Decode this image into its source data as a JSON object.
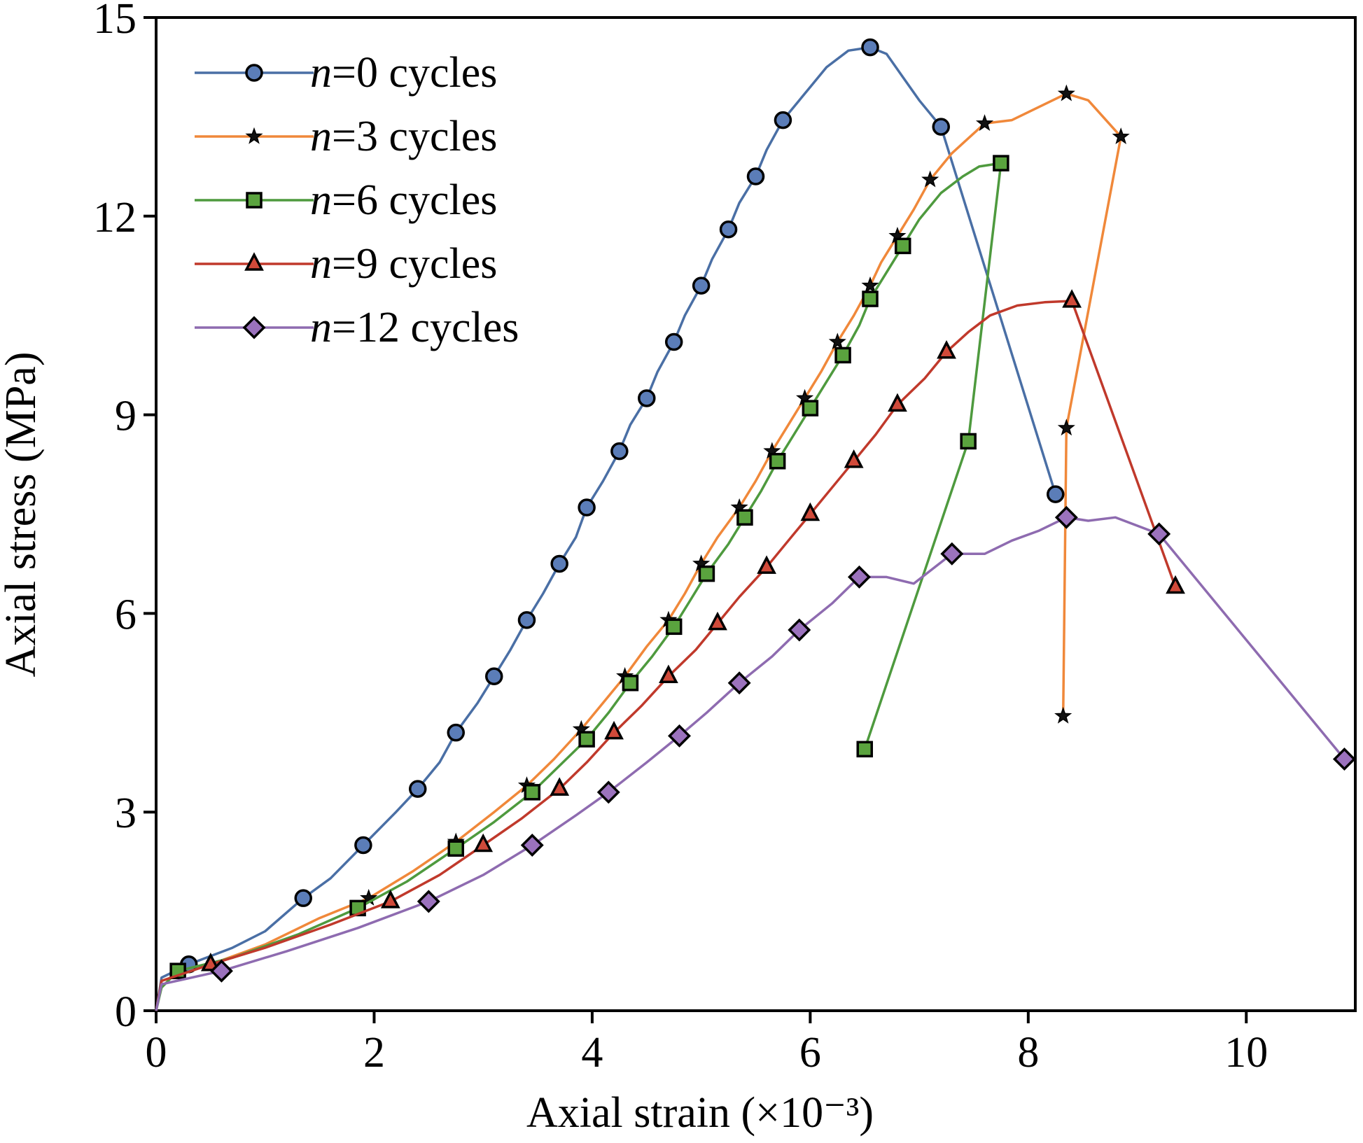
{
  "chart_data": {
    "type": "line",
    "xlabel": "Axial strain (×10⁻³)",
    "ylabel": "Axial stress (MPa)",
    "xlim": [
      0,
      11
    ],
    "ylim": [
      0,
      15
    ],
    "xticks": [
      0,
      2,
      4,
      6,
      8,
      10
    ],
    "yticks": [
      0,
      3,
      6,
      9,
      12,
      15
    ],
    "grid": false,
    "legend_position": "top-left",
    "series": [
      {
        "name": "n=0 cycles",
        "legend_prefix": "n",
        "legend_suffix": "=0 cycles",
        "color": "#4a6fa5",
        "fill": "#5b7db8",
        "marker": "circle",
        "line": [
          [
            0,
            0
          ],
          [
            0.05,
            0.5
          ],
          [
            0.3,
            0.7
          ],
          [
            0.7,
            0.95
          ],
          [
            1.0,
            1.2
          ],
          [
            1.35,
            1.7
          ],
          [
            1.6,
            2.0
          ],
          [
            1.9,
            2.5
          ],
          [
            2.2,
            3.0
          ],
          [
            2.4,
            3.35
          ],
          [
            2.6,
            3.75
          ],
          [
            2.75,
            4.2
          ],
          [
            2.95,
            4.65
          ],
          [
            3.1,
            5.05
          ],
          [
            3.25,
            5.45
          ],
          [
            3.4,
            5.9
          ],
          [
            3.55,
            6.3
          ],
          [
            3.7,
            6.75
          ],
          [
            3.85,
            7.15
          ],
          [
            3.95,
            7.6
          ],
          [
            4.1,
            8.0
          ],
          [
            4.25,
            8.45
          ],
          [
            4.35,
            8.85
          ],
          [
            4.5,
            9.25
          ],
          [
            4.6,
            9.65
          ],
          [
            4.75,
            10.1
          ],
          [
            4.85,
            10.5
          ],
          [
            5.0,
            10.95
          ],
          [
            5.1,
            11.35
          ],
          [
            5.25,
            11.8
          ],
          [
            5.35,
            12.2
          ],
          [
            5.5,
            12.6
          ],
          [
            5.6,
            13.0
          ],
          [
            5.75,
            13.45
          ],
          [
            5.95,
            13.85
          ],
          [
            6.15,
            14.25
          ],
          [
            6.35,
            14.5
          ],
          [
            6.55,
            14.55
          ],
          [
            6.7,
            14.45
          ],
          [
            6.85,
            14.1
          ],
          [
            7.0,
            13.75
          ],
          [
            7.2,
            13.35
          ],
          [
            8.25,
            7.8
          ]
        ],
        "markers": [
          [
            0.3,
            0.7
          ],
          [
            1.35,
            1.7
          ],
          [
            1.9,
            2.5
          ],
          [
            2.4,
            3.35
          ],
          [
            2.75,
            4.2
          ],
          [
            3.1,
            5.05
          ],
          [
            3.4,
            5.9
          ],
          [
            3.7,
            6.75
          ],
          [
            3.95,
            7.6
          ],
          [
            4.25,
            8.45
          ],
          [
            4.5,
            9.25
          ],
          [
            4.75,
            10.1
          ],
          [
            5.0,
            10.95
          ],
          [
            5.25,
            11.8
          ],
          [
            5.5,
            12.6
          ],
          [
            5.75,
            13.45
          ],
          [
            6.55,
            14.55
          ],
          [
            7.2,
            13.35
          ],
          [
            8.25,
            7.8
          ]
        ]
      },
      {
        "name": "n=3 cycles",
        "legend_prefix": "n",
        "legend_suffix": "=3 cycles",
        "color": "#f0883a",
        "fill": "#000000",
        "marker": "star",
        "line": [
          [
            0,
            0
          ],
          [
            0.05,
            0.45
          ],
          [
            0.5,
            0.7
          ],
          [
            1.0,
            1.0
          ],
          [
            1.5,
            1.4
          ],
          [
            1.95,
            1.7
          ],
          [
            2.35,
            2.1
          ],
          [
            2.75,
            2.55
          ],
          [
            3.1,
            3.0
          ],
          [
            3.4,
            3.4
          ],
          [
            3.65,
            3.8
          ],
          [
            3.9,
            4.25
          ],
          [
            4.1,
            4.65
          ],
          [
            4.3,
            5.05
          ],
          [
            4.5,
            5.5
          ],
          [
            4.7,
            5.9
          ],
          [
            4.85,
            6.3
          ],
          [
            5.0,
            6.75
          ],
          [
            5.15,
            7.15
          ],
          [
            5.35,
            7.6
          ],
          [
            5.5,
            8.0
          ],
          [
            5.65,
            8.45
          ],
          [
            5.8,
            8.85
          ],
          [
            5.95,
            9.25
          ],
          [
            6.1,
            9.65
          ],
          [
            6.25,
            10.1
          ],
          [
            6.4,
            10.5
          ],
          [
            6.55,
            10.95
          ],
          [
            6.65,
            11.3
          ],
          [
            6.8,
            11.7
          ],
          [
            6.95,
            12.1
          ],
          [
            7.1,
            12.55
          ],
          [
            7.3,
            12.95
          ],
          [
            7.6,
            13.4
          ],
          [
            7.85,
            13.45
          ],
          [
            8.1,
            13.65
          ],
          [
            8.35,
            13.85
          ],
          [
            8.55,
            13.75
          ],
          [
            8.85,
            13.2
          ],
          [
            8.35,
            8.8
          ],
          [
            8.32,
            4.45
          ]
        ],
        "markers": [
          [
            1.95,
            1.7
          ],
          [
            2.75,
            2.55
          ],
          [
            3.4,
            3.4
          ],
          [
            3.9,
            4.25
          ],
          [
            4.3,
            5.05
          ],
          [
            4.7,
            5.9
          ],
          [
            5.0,
            6.75
          ],
          [
            5.35,
            7.6
          ],
          [
            5.65,
            8.45
          ],
          [
            5.95,
            9.25
          ],
          [
            6.25,
            10.1
          ],
          [
            6.55,
            10.95
          ],
          [
            6.8,
            11.7
          ],
          [
            7.1,
            12.55
          ],
          [
            7.6,
            13.4
          ],
          [
            8.35,
            13.85
          ],
          [
            8.85,
            13.2
          ],
          [
            8.35,
            8.8
          ],
          [
            8.32,
            4.45
          ]
        ]
      },
      {
        "name": "n=6 cycles",
        "legend_prefix": "n",
        "legend_suffix": "=6 cycles",
        "color": "#4e9a3e",
        "fill": "#5aa33e",
        "marker": "square",
        "line": [
          [
            0,
            0
          ],
          [
            0.05,
            0.35
          ],
          [
            0.2,
            0.6
          ],
          [
            0.7,
            0.8
          ],
          [
            1.3,
            1.15
          ],
          [
            1.85,
            1.55
          ],
          [
            2.3,
            1.95
          ],
          [
            2.75,
            2.45
          ],
          [
            3.1,
            2.85
          ],
          [
            3.45,
            3.3
          ],
          [
            3.7,
            3.7
          ],
          [
            3.95,
            4.1
          ],
          [
            4.15,
            4.5
          ],
          [
            4.35,
            4.95
          ],
          [
            4.55,
            5.35
          ],
          [
            4.75,
            5.8
          ],
          [
            4.9,
            6.2
          ],
          [
            5.05,
            6.6
          ],
          [
            5.25,
            7.05
          ],
          [
            5.4,
            7.45
          ],
          [
            5.55,
            7.85
          ],
          [
            5.7,
            8.3
          ],
          [
            5.85,
            8.7
          ],
          [
            6.0,
            9.1
          ],
          [
            6.15,
            9.5
          ],
          [
            6.3,
            9.9
          ],
          [
            6.45,
            10.35
          ],
          [
            6.55,
            10.75
          ],
          [
            6.7,
            11.15
          ],
          [
            6.85,
            11.55
          ],
          [
            7.0,
            11.95
          ],
          [
            7.2,
            12.35
          ],
          [
            7.4,
            12.6
          ],
          [
            7.55,
            12.75
          ],
          [
            7.75,
            12.8
          ],
          [
            7.45,
            8.6
          ],
          [
            6.5,
            3.95
          ]
        ],
        "markers": [
          [
            0.2,
            0.6
          ],
          [
            1.85,
            1.55
          ],
          [
            2.75,
            2.45
          ],
          [
            3.45,
            3.3
          ],
          [
            3.95,
            4.1
          ],
          [
            4.35,
            4.95
          ],
          [
            4.75,
            5.8
          ],
          [
            5.05,
            6.6
          ],
          [
            5.4,
            7.45
          ],
          [
            5.7,
            8.3
          ],
          [
            6.0,
            9.1
          ],
          [
            6.3,
            9.9
          ],
          [
            6.55,
            10.75
          ],
          [
            6.85,
            11.55
          ],
          [
            7.75,
            12.8
          ],
          [
            7.45,
            8.6
          ],
          [
            6.5,
            3.95
          ]
        ]
      },
      {
        "name": "n=9 cycles",
        "legend_prefix": "n",
        "legend_suffix": "=9 cycles",
        "color": "#c0392b",
        "fill": "#d04a3a",
        "marker": "triangle",
        "line": [
          [
            0,
            0
          ],
          [
            0.05,
            0.45
          ],
          [
            0.5,
            0.7
          ],
          [
            1.0,
            0.95
          ],
          [
            1.6,
            1.3
          ],
          [
            2.15,
            1.65
          ],
          [
            2.6,
            2.05
          ],
          [
            3.0,
            2.5
          ],
          [
            3.35,
            2.9
          ],
          [
            3.7,
            3.35
          ],
          [
            3.95,
            3.75
          ],
          [
            4.2,
            4.2
          ],
          [
            4.45,
            4.6
          ],
          [
            4.7,
            5.05
          ],
          [
            4.95,
            5.45
          ],
          [
            5.15,
            5.85
          ],
          [
            5.35,
            6.25
          ],
          [
            5.6,
            6.7
          ],
          [
            5.8,
            7.1
          ],
          [
            6.0,
            7.5
          ],
          [
            6.2,
            7.9
          ],
          [
            6.4,
            8.3
          ],
          [
            6.6,
            8.7
          ],
          [
            6.8,
            9.15
          ],
          [
            7.05,
            9.55
          ],
          [
            7.25,
            9.95
          ],
          [
            7.45,
            10.25
          ],
          [
            7.65,
            10.5
          ],
          [
            7.9,
            10.65
          ],
          [
            8.15,
            10.7
          ],
          [
            8.4,
            10.72
          ],
          [
            9.35,
            6.4
          ]
        ],
        "markers": [
          [
            0.5,
            0.7
          ],
          [
            2.15,
            1.65
          ],
          [
            3.0,
            2.5
          ],
          [
            3.7,
            3.35
          ],
          [
            4.2,
            4.2
          ],
          [
            4.7,
            5.05
          ],
          [
            5.15,
            5.85
          ],
          [
            5.6,
            6.7
          ],
          [
            6.0,
            7.5
          ],
          [
            6.4,
            8.3
          ],
          [
            6.8,
            9.15
          ],
          [
            7.25,
            9.95
          ],
          [
            8.4,
            10.72
          ],
          [
            9.35,
            6.4
          ]
        ]
      },
      {
        "name": "n=12 cycles",
        "legend_prefix": "n",
        "legend_suffix": "=12 cycles",
        "color": "#8e6bb0",
        "fill": "#9b72bd",
        "marker": "diamond",
        "line": [
          [
            0,
            0
          ],
          [
            0.05,
            0.4
          ],
          [
            0.6,
            0.6
          ],
          [
            1.2,
            0.9
          ],
          [
            1.85,
            1.25
          ],
          [
            2.5,
            1.65
          ],
          [
            3.0,
            2.05
          ],
          [
            3.45,
            2.5
          ],
          [
            3.85,
            2.95
          ],
          [
            4.15,
            3.3
          ],
          [
            4.5,
            3.75
          ],
          [
            4.8,
            4.15
          ],
          [
            5.05,
            4.5
          ],
          [
            5.35,
            4.95
          ],
          [
            5.65,
            5.35
          ],
          [
            5.9,
            5.75
          ],
          [
            6.2,
            6.15
          ],
          [
            6.45,
            6.55
          ],
          [
            6.7,
            6.55
          ],
          [
            6.95,
            6.45
          ],
          [
            7.3,
            6.9
          ],
          [
            7.6,
            6.9
          ],
          [
            7.85,
            7.1
          ],
          [
            8.1,
            7.25
          ],
          [
            8.35,
            7.45
          ],
          [
            8.55,
            7.4
          ],
          [
            8.8,
            7.45
          ],
          [
            9.2,
            7.2
          ],
          [
            10.9,
            3.8
          ]
        ],
        "markers": [
          [
            0.6,
            0.6
          ],
          [
            2.5,
            1.65
          ],
          [
            3.45,
            2.5
          ],
          [
            4.15,
            3.3
          ],
          [
            4.8,
            4.15
          ],
          [
            5.35,
            4.95
          ],
          [
            5.9,
            5.75
          ],
          [
            6.45,
            6.55
          ],
          [
            7.3,
            6.9
          ],
          [
            8.35,
            7.45
          ],
          [
            9.2,
            7.2
          ],
          [
            10.9,
            3.8
          ]
        ]
      }
    ]
  }
}
